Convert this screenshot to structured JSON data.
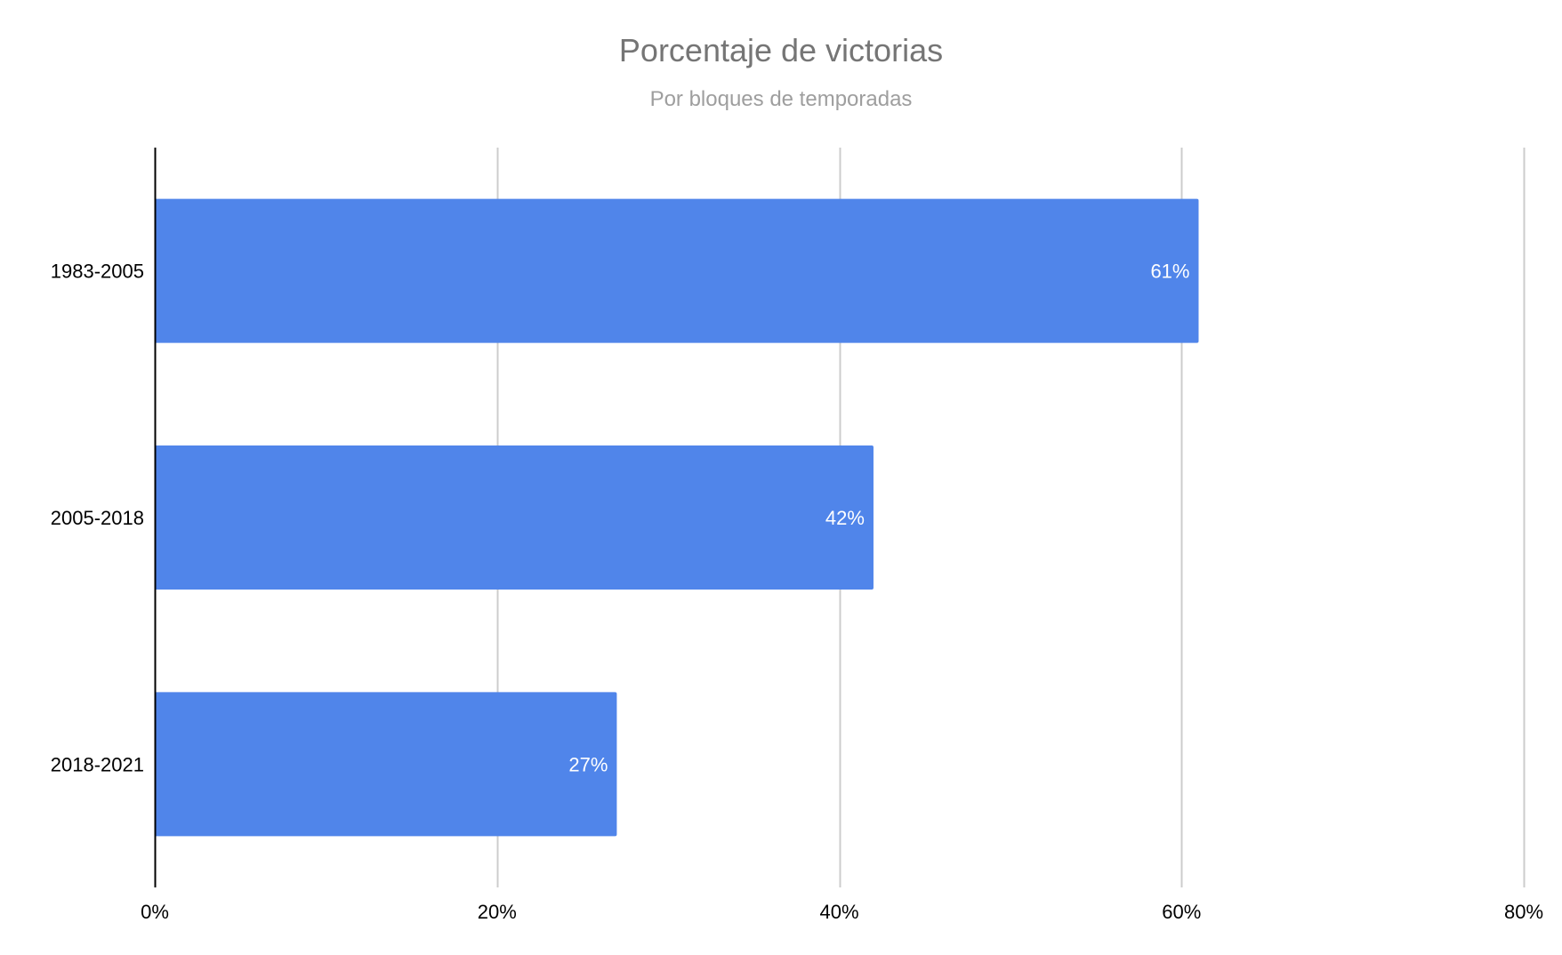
{
  "chart_data": {
    "type": "bar",
    "orientation": "horizontal",
    "title": "Porcentaje de victorias",
    "subtitle": "Por bloques de temporadas",
    "categories": [
      "1983-2005",
      "2005-2018",
      "2018-2021"
    ],
    "values": [
      61,
      42,
      27
    ],
    "data_labels": [
      "61%",
      "42%",
      "27%"
    ],
    "xlim": [
      0,
      80
    ],
    "x_ticks": [
      0,
      20,
      40,
      60,
      80
    ],
    "x_tick_labels": [
      "0%",
      "20%",
      "40%",
      "60%",
      "80%"
    ],
    "xlabel": "",
    "ylabel": "",
    "grid": true,
    "legend": "none",
    "colors": {
      "bar": "#5085EA",
      "grid": "#cccccc",
      "axis": "#000000",
      "title": "#757575",
      "subtitle": "#9e9e9e",
      "data_label": "#ffffff"
    }
  }
}
